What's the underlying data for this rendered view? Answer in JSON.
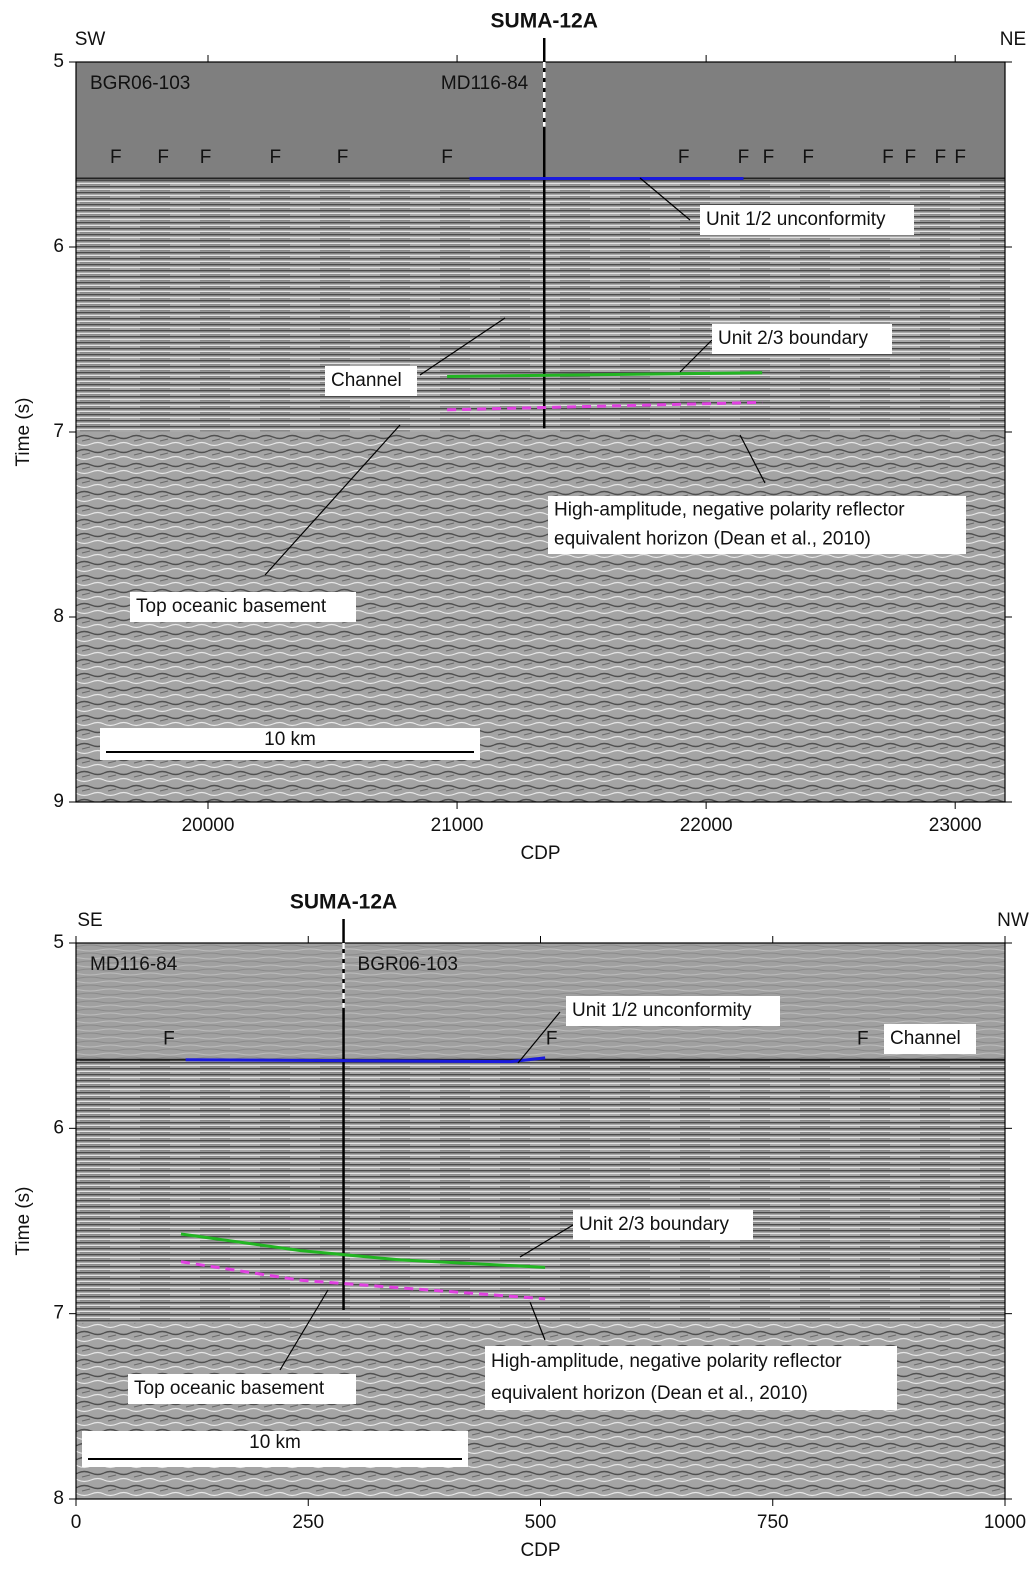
{
  "chart_data": [
    {
      "type": "line",
      "title": "SUMA-12A",
      "left_label": "SW",
      "right_label": "NE",
      "line_name": "BGR06-103",
      "crossing_line": "MD116-84",
      "xlabel": "CDP",
      "ylabel": "Time (s)",
      "xlim": [
        19470,
        23200
      ],
      "ylim": [
        5,
        9
      ],
      "y_inverted": true,
      "xticks": [
        20000,
        21000,
        22000,
        23000
      ],
      "yticks": [
        5,
        6,
        7,
        8,
        9
      ],
      "seafloor": 5.63,
      "basement": 7.0,
      "water_color": "#7f7f7f",
      "well_x": 21350,
      "well_bottom": 6.98,
      "crossing_bottom": 5.35,
      "series": [
        {
          "color": "#1a1adc",
          "dashed": false,
          "x": [
            21050,
            22150
          ],
          "values": [
            5.63,
            5.63
          ]
        },
        {
          "color": "#22b522",
          "dashed": false,
          "x": [
            20960,
            22225
          ],
          "values": [
            6.7,
            6.68
          ]
        },
        {
          "color": "#e040e0",
          "dashed": true,
          "x": [
            20960,
            22225
          ],
          "values": [
            6.88,
            6.84
          ]
        }
      ],
      "faults": {
        "label": "F",
        "x": [
          19630,
          19820,
          19990,
          20270,
          20540,
          20960,
          21910,
          22150,
          22250,
          22410,
          22730,
          22820,
          22940,
          23020
        ],
        "y": 5.52
      },
      "annotations": [
        [
          "Unit 1/2 unconformity"
        ],
        [
          "Unit 2/3 boundary"
        ],
        [
          "Channel"
        ],
        [
          "High-amplitude, negative polarity reflector",
          "equivalent horizon (Dean et al., 2010)"
        ],
        [
          "Top oceanic basement"
        ]
      ],
      "scale_bar": "10 km"
    },
    {
      "type": "line",
      "title": "SUMA-12A",
      "left_label": "SE",
      "right_label": "NW",
      "line_name": "MD116-84",
      "crossing_line": "BGR06-103",
      "xlabel": "CDP",
      "ylabel": "Time (s)",
      "xlim": [
        0,
        1000
      ],
      "ylim": [
        5,
        8
      ],
      "y_inverted": true,
      "xticks": [
        0,
        250,
        500,
        750,
        1000
      ],
      "yticks": [
        5,
        6,
        7,
        8
      ],
      "seafloor": 5.63,
      "basement": 7.05,
      "water_color": null,
      "well_x": 288,
      "well_bottom": 6.98,
      "crossing_bottom": 5.35,
      "series": [
        {
          "color": "#1a1adc",
          "dashed": false,
          "x": [
            118,
            468,
            505
          ],
          "values": [
            5.63,
            5.64,
            5.62
          ]
        },
        {
          "color": "#22b522",
          "dashed": false,
          "x": [
            113,
            242,
            349,
            505
          ],
          "values": [
            6.57,
            6.66,
            6.71,
            6.75
          ]
        },
        {
          "color": "#e040e0",
          "dashed": true,
          "x": [
            113,
            242,
            505
          ],
          "values": [
            6.72,
            6.82,
            6.92
          ]
        }
      ],
      "faults": {
        "label": "F",
        "x": [
          100,
          512,
          847
        ],
        "y": 5.52
      },
      "annotations": [
        [
          "Channel"
        ],
        [
          "Unit 1/2 unconformity"
        ],
        [
          "Unit 2/3 boundary"
        ],
        [
          "High-amplitude, negative polarity reflector",
          "equivalent horizon (Dean et al., 2010)"
        ],
        [
          "Top oceanic basement"
        ]
      ],
      "scale_bar": "10 km"
    }
  ]
}
